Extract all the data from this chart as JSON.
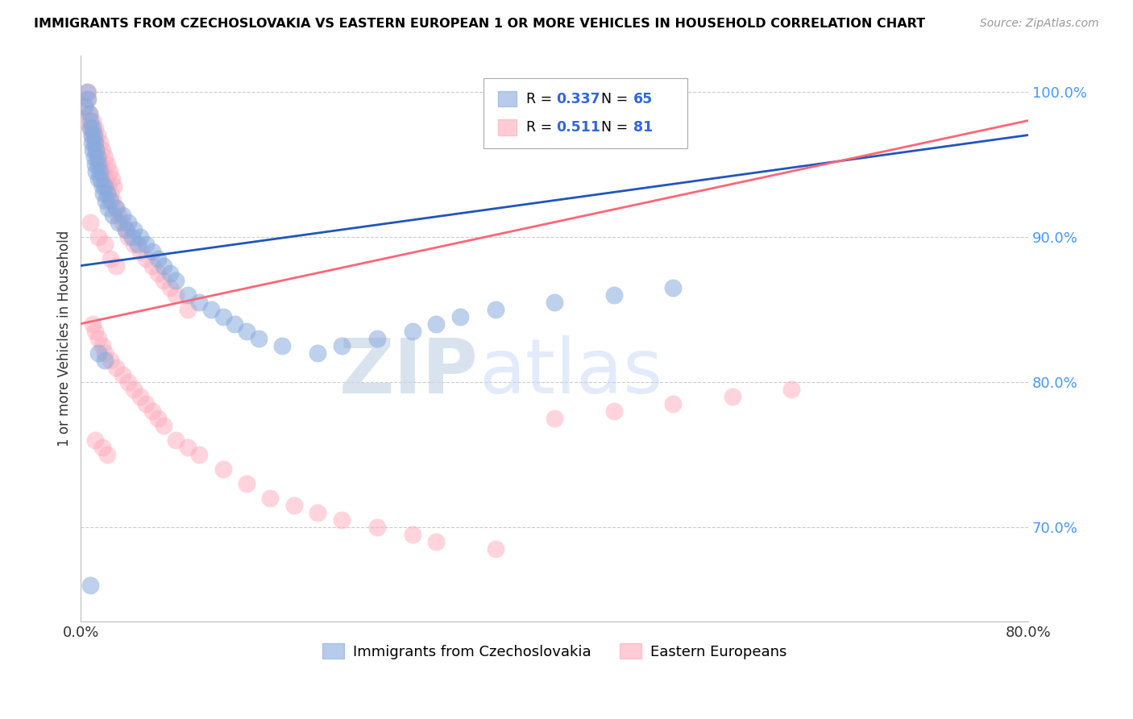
{
  "title": "IMMIGRANTS FROM CZECHOSLOVAKIA VS EASTERN EUROPEAN 1 OR MORE VEHICLES IN HOUSEHOLD CORRELATION CHART",
  "source": "Source: ZipAtlas.com",
  "ylabel": "1 or more Vehicles in Household",
  "xlim": [
    0.0,
    0.8
  ],
  "ylim": [
    0.635,
    1.025
  ],
  "blue_color": "#88AADD",
  "pink_color": "#FFAABB",
  "blue_line_color": "#2255BB",
  "pink_line_color": "#FF6677",
  "R_blue": 0.337,
  "N_blue": 65,
  "R_pink": 0.511,
  "N_pink": 81,
  "legend_label_blue": "Immigrants from Czechoslovakia",
  "legend_label_pink": "Eastern Europeans",
  "watermark_zip": "ZIP",
  "watermark_atlas": "atlas",
  "ytick_vals": [
    0.7,
    0.8,
    0.9,
    1.0
  ],
  "ytick_labels": [
    "70.0%",
    "80.0%",
    "90.0%",
    "100.0%"
  ],
  "blue_x": [
    0.003,
    0.005,
    0.006,
    0.007,
    0.008,
    0.008,
    0.009,
    0.009,
    0.01,
    0.01,
    0.011,
    0.011,
    0.012,
    0.012,
    0.013,
    0.013,
    0.014,
    0.015,
    0.015,
    0.016,
    0.017,
    0.018,
    0.019,
    0.02,
    0.021,
    0.022,
    0.023,
    0.025,
    0.027,
    0.03,
    0.032,
    0.035,
    0.038,
    0.04,
    0.043,
    0.045,
    0.048,
    0.05,
    0.055,
    0.06,
    0.065,
    0.07,
    0.075,
    0.08,
    0.09,
    0.1,
    0.11,
    0.12,
    0.13,
    0.14,
    0.15,
    0.17,
    0.2,
    0.22,
    0.25,
    0.28,
    0.3,
    0.32,
    0.35,
    0.4,
    0.45,
    0.5,
    0.015,
    0.02,
    0.008
  ],
  "blue_y": [
    0.99,
    1.0,
    0.995,
    0.985,
    0.98,
    0.975,
    0.97,
    0.965,
    0.975,
    0.96,
    0.97,
    0.955,
    0.965,
    0.95,
    0.96,
    0.945,
    0.955,
    0.95,
    0.94,
    0.945,
    0.94,
    0.935,
    0.93,
    0.935,
    0.925,
    0.93,
    0.92,
    0.925,
    0.915,
    0.92,
    0.91,
    0.915,
    0.905,
    0.91,
    0.9,
    0.905,
    0.895,
    0.9,
    0.895,
    0.89,
    0.885,
    0.88,
    0.875,
    0.87,
    0.86,
    0.855,
    0.85,
    0.845,
    0.84,
    0.835,
    0.83,
    0.825,
    0.82,
    0.825,
    0.83,
    0.835,
    0.84,
    0.845,
    0.85,
    0.855,
    0.86,
    0.865,
    0.82,
    0.815,
    0.66
  ],
  "pink_x": [
    0.003,
    0.004,
    0.005,
    0.006,
    0.007,
    0.008,
    0.009,
    0.01,
    0.011,
    0.012,
    0.013,
    0.014,
    0.015,
    0.016,
    0.017,
    0.018,
    0.019,
    0.02,
    0.021,
    0.022,
    0.023,
    0.024,
    0.025,
    0.026,
    0.027,
    0.028,
    0.03,
    0.032,
    0.035,
    0.038,
    0.04,
    0.045,
    0.05,
    0.055,
    0.06,
    0.065,
    0.07,
    0.075,
    0.08,
    0.09,
    0.01,
    0.012,
    0.015,
    0.018,
    0.02,
    0.025,
    0.03,
    0.035,
    0.04,
    0.045,
    0.05,
    0.055,
    0.06,
    0.065,
    0.07,
    0.08,
    0.09,
    0.1,
    0.12,
    0.14,
    0.16,
    0.18,
    0.2,
    0.22,
    0.25,
    0.28,
    0.3,
    0.35,
    0.4,
    0.45,
    0.5,
    0.55,
    0.6,
    0.008,
    0.015,
    0.02,
    0.025,
    0.03,
    0.012,
    0.018,
    0.022
  ],
  "pink_y": [
    0.98,
    0.99,
    0.995,
    1.0,
    0.985,
    0.975,
    0.97,
    0.98,
    0.965,
    0.975,
    0.96,
    0.97,
    0.955,
    0.965,
    0.95,
    0.96,
    0.945,
    0.955,
    0.94,
    0.95,
    0.935,
    0.945,
    0.93,
    0.94,
    0.925,
    0.935,
    0.92,
    0.915,
    0.91,
    0.905,
    0.9,
    0.895,
    0.89,
    0.885,
    0.88,
    0.875,
    0.87,
    0.865,
    0.86,
    0.85,
    0.84,
    0.835,
    0.83,
    0.825,
    0.82,
    0.815,
    0.81,
    0.805,
    0.8,
    0.795,
    0.79,
    0.785,
    0.78,
    0.775,
    0.77,
    0.76,
    0.755,
    0.75,
    0.74,
    0.73,
    0.72,
    0.715,
    0.71,
    0.705,
    0.7,
    0.695,
    0.69,
    0.685,
    0.775,
    0.78,
    0.785,
    0.79,
    0.795,
    0.91,
    0.9,
    0.895,
    0.885,
    0.88,
    0.76,
    0.755,
    0.75
  ]
}
